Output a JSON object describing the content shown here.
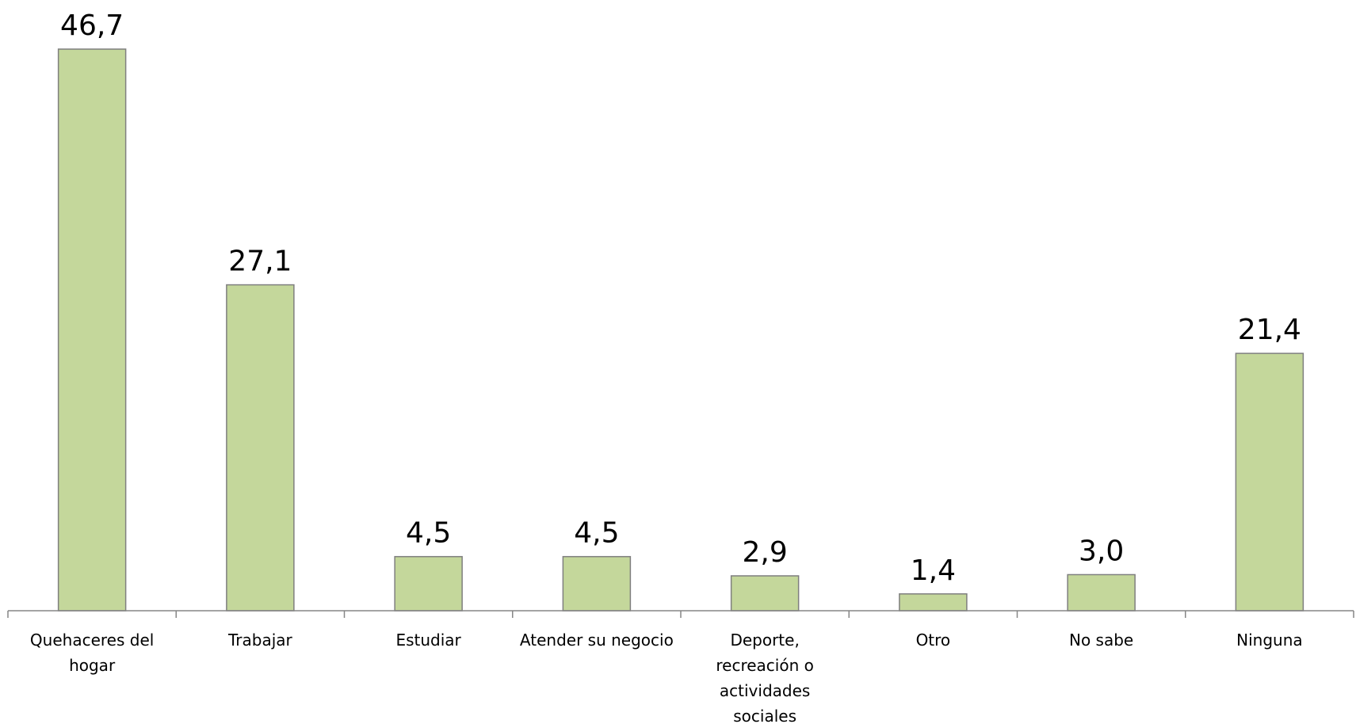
{
  "chart_data": {
    "type": "bar",
    "categories": [
      [
        "Quehaceres del",
        "hogar"
      ],
      [
        "Trabajar"
      ],
      [
        "Estudiar"
      ],
      [
        "Atender su negocio"
      ],
      [
        "Deporte,",
        "recreación o",
        "actividades",
        "sociales"
      ],
      [
        "Otro"
      ],
      [
        "No sabe"
      ],
      [
        "Ninguna"
      ]
    ],
    "values": [
      46.7,
      27.1,
      4.5,
      4.5,
      2.9,
      1.4,
      3.0,
      21.4
    ],
    "value_labels": [
      "46,7",
      "27,1",
      "4,5",
      "4,5",
      "2,9",
      "1,4",
      "3,0",
      "21,4"
    ],
    "title": "",
    "xlabel": "",
    "ylabel": "",
    "ylim": [
      0,
      46.7
    ],
    "grid": false,
    "legend": "none",
    "colors": {
      "bar_fill": "#c4d79b",
      "bar_stroke": "#7f7f7f",
      "axis": "#868686",
      "text": "#000000"
    }
  }
}
